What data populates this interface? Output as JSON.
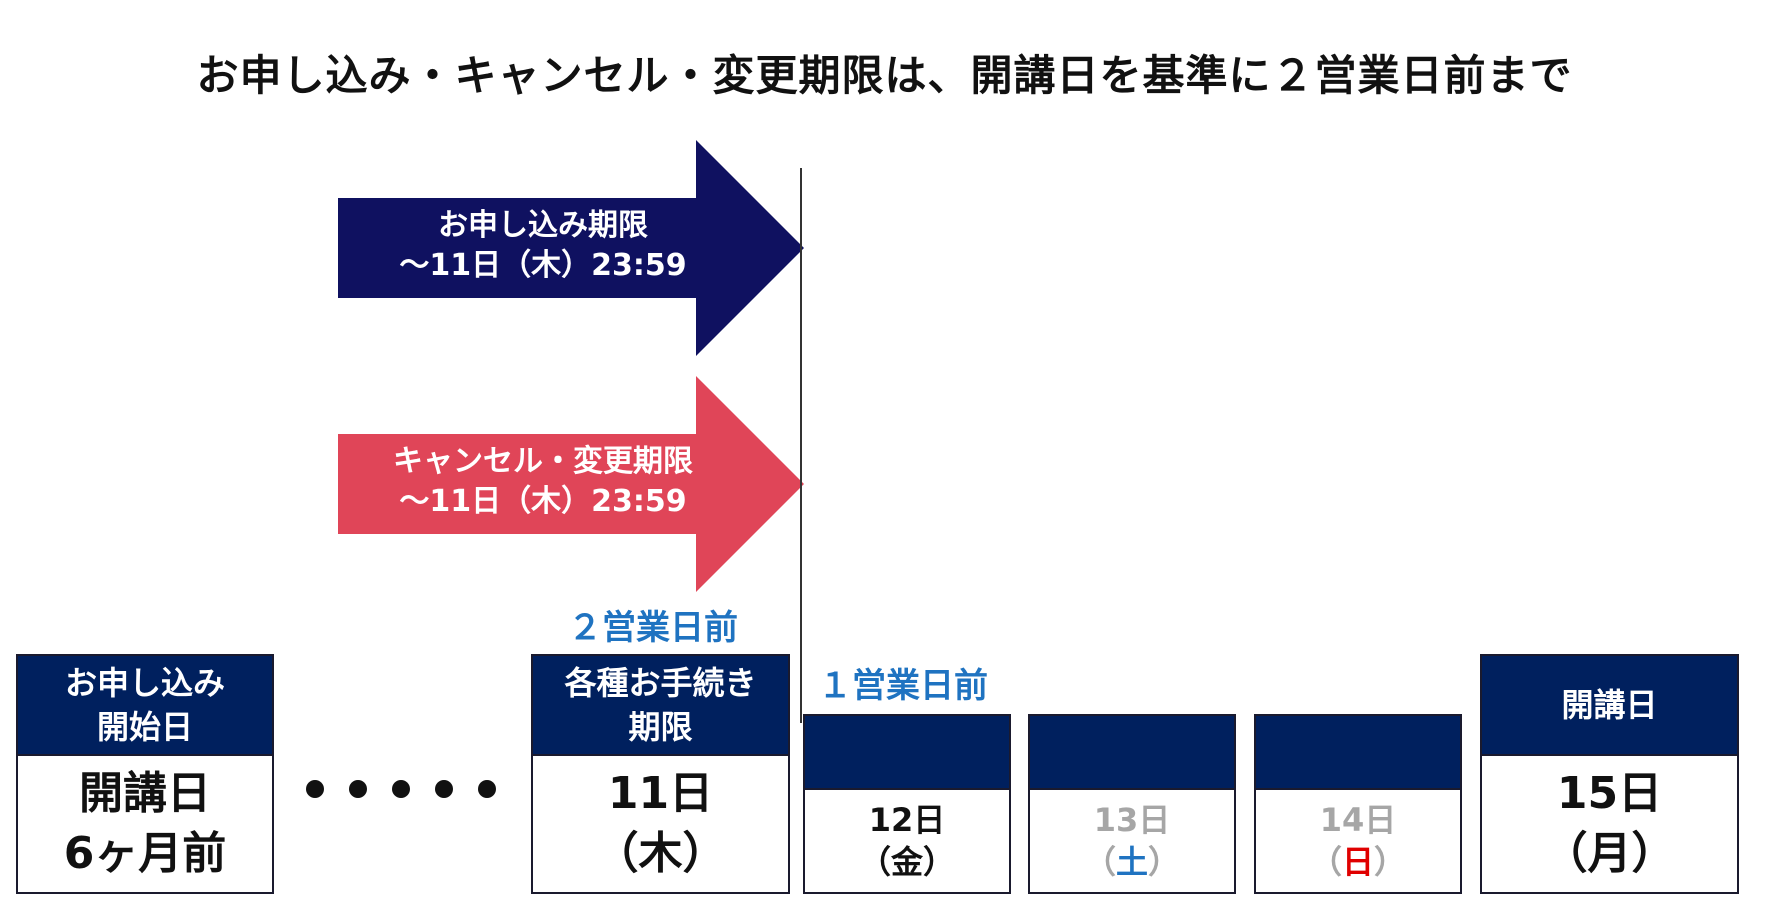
{
  "title": "お申し込み・キャンセル・変更期限は、開講日を基準に２営業日前まで",
  "arrows": {
    "application": {
      "line1": "お申し込み期限",
      "line2": "～11日（木）23:59",
      "color": "#0f1160"
    },
    "cancel": {
      "line1": "キャンセル・変更期限",
      "line2": "～11日（木）23:59",
      "color": "#e04558"
    }
  },
  "labels": {
    "two_days_before": "２営業日前",
    "one_day_before": "１営業日前"
  },
  "boxes": {
    "start": {
      "head_line1": "お申し込み",
      "head_line2": "開始日",
      "body_line1": "開講日",
      "body_line2": "6ヶ月前"
    },
    "deadline": {
      "head_line1": "各種お手続き",
      "head_line2": "期限",
      "body_line1": "11日",
      "body_line2": "（木）"
    },
    "day12": {
      "date": "12日",
      "dow_open": "（",
      "dow": "金",
      "dow_close": "）"
    },
    "day13": {
      "date": "13日",
      "dow_open": "（",
      "dow": "土",
      "dow_close": "）",
      "dow_color": "#1f73c1"
    },
    "day14": {
      "date": "14日",
      "dow_open": "（",
      "dow": "日",
      "dow_close": "）",
      "dow_color": "#e00000"
    },
    "start_day": {
      "head": "開講日",
      "body_line1": "15日",
      "body_line2": "（月）"
    }
  },
  "colors": {
    "navy_header": "#00205e",
    "accent_blue": "#1f73c1",
    "holiday_gray": "#a6a6a6"
  }
}
